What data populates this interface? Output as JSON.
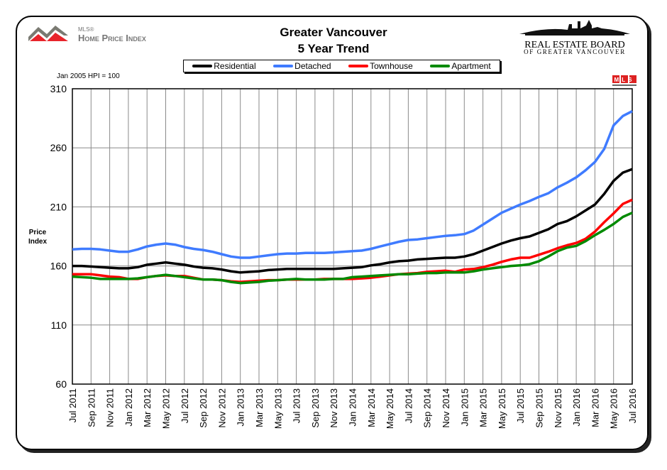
{
  "header": {
    "title_line1": "Greater Vancouver",
    "title_line2": "5 Year Trend",
    "hpi_logo_small": "MLS®",
    "hpi_logo_text": "Home Price Index",
    "board_logo_line1": "REAL ESTATE BOARD",
    "board_logo_line2": "OF GREATER VANCOUVER",
    "mls_badge": "MLS"
  },
  "note": "Jan 2005 HPI = 100",
  "chart_data": {
    "type": "line",
    "title": "Greater Vancouver 5 Year Trend",
    "ylabel": "Price Index",
    "ylim": [
      60,
      310
    ],
    "yticks": [
      60,
      110,
      160,
      210,
      260,
      310
    ],
    "grid": true,
    "legend_placement": "top",
    "x": [
      "Jul 2011",
      "Aug 2011",
      "Sep 2011",
      "Oct 2011",
      "Nov 2011",
      "Dec 2011",
      "Jan 2012",
      "Feb 2012",
      "Mar 2012",
      "Apr 2012",
      "May 2012",
      "Jun 2012",
      "Jul 2012",
      "Aug 2012",
      "Sep 2012",
      "Oct 2012",
      "Nov 2012",
      "Dec 2012",
      "Jan 2013",
      "Feb 2013",
      "Mar 2013",
      "Apr 2013",
      "May 2013",
      "Jun 2013",
      "Jul 2013",
      "Aug 2013",
      "Sep 2013",
      "Oct 2013",
      "Nov 2013",
      "Dec 2013",
      "Jan 2014",
      "Feb 2014",
      "Mar 2014",
      "Apr 2014",
      "May 2014",
      "Jun 2014",
      "Jul 2014",
      "Aug 2014",
      "Sep 2014",
      "Oct 2014",
      "Nov 2014",
      "Dec 2014",
      "Jan 2015",
      "Feb 2015",
      "Mar 2015",
      "Apr 2015",
      "May 2015",
      "Jun 2015",
      "Jul 2015",
      "Aug 2015",
      "Sep 2015",
      "Oct 2015",
      "Nov 2015",
      "Dec 2015",
      "Jan 2016",
      "Feb 2016",
      "Mar 2016",
      "Apr 2016",
      "May 2016",
      "Jun 2016",
      "Jul 2016"
    ],
    "xtick_labels": [
      "Jul 2011",
      "Sep 2011",
      "Nov 2011",
      "Jan 2012",
      "Mar 2012",
      "May 2012",
      "Jul 2012",
      "Sep 2012",
      "Nov 2012",
      "Jan 2013",
      "Mar 2013",
      "May 2013",
      "Jul 2013",
      "Sep 2013",
      "Nov 2013",
      "Jan 2014",
      "Mar 2014",
      "May 2014",
      "Jul 2014",
      "Sep 2014",
      "Nov 2014",
      "Jan 2015",
      "Mar 2015",
      "May 2015",
      "Jul 2015",
      "Sep 2015",
      "Nov 2015",
      "Jan 2016",
      "Mar 2016",
      "May 2016",
      "Jul 2016"
    ],
    "series": [
      {
        "name": "Residential",
        "color": "#000000",
        "values": [
          160,
          160,
          159.5,
          159,
          158.5,
          158,
          158,
          159,
          161,
          162,
          163,
          162,
          161,
          159.5,
          158.5,
          158,
          157,
          155.5,
          154.5,
          155,
          155.5,
          156.5,
          157,
          157.5,
          157.5,
          157.5,
          157.5,
          157.5,
          157.5,
          158,
          158.5,
          159,
          160.5,
          161.5,
          163,
          164,
          164.5,
          165.5,
          166,
          166.5,
          167,
          167,
          168,
          170,
          173,
          176,
          179,
          181.5,
          183.5,
          185,
          188,
          191,
          195.5,
          198,
          202,
          207,
          212,
          221,
          232,
          239,
          242
        ]
      },
      {
        "name": "Detached",
        "color": "#3f7bff",
        "values": [
          174,
          174.5,
          174.5,
          174,
          173,
          172,
          172,
          174,
          176.5,
          178,
          179,
          178,
          176,
          174.5,
          173.5,
          172,
          170,
          168,
          167,
          167,
          168,
          169,
          170,
          170.5,
          170.5,
          171,
          171,
          171,
          171.5,
          172,
          172.5,
          173,
          174.5,
          176.5,
          178.5,
          180.5,
          182,
          182.5,
          183.5,
          184.5,
          185.5,
          186,
          187,
          190,
          195,
          200,
          205,
          208.5,
          212,
          215,
          218.5,
          221.5,
          226.5,
          230.5,
          235,
          241,
          248,
          259,
          279,
          287,
          291
        ]
      },
      {
        "name": "Townhouse",
        "color": "#ff0000",
        "values": [
          153,
          153,
          153,
          152,
          151,
          150.5,
          149,
          149,
          150.5,
          151.5,
          152,
          151.5,
          151.5,
          150,
          148.5,
          148.5,
          148,
          147,
          146.5,
          147,
          147.5,
          148,
          148,
          148.5,
          148.5,
          148.5,
          148.5,
          149,
          149,
          149,
          149,
          149.5,
          150,
          151,
          152,
          153,
          153.5,
          154,
          155,
          155.5,
          156,
          155,
          157,
          157.5,
          159,
          161,
          163.5,
          165.5,
          167,
          167,
          169.5,
          172,
          175,
          177.5,
          179.5,
          183,
          189,
          197,
          204.5,
          212.5,
          216
        ]
      },
      {
        "name": "Apartment",
        "color": "#008a00",
        "values": [
          151,
          150.5,
          150,
          149,
          149,
          149,
          149,
          149.5,
          150.5,
          151.5,
          152.5,
          151.5,
          150.5,
          149.5,
          148.5,
          148.5,
          148,
          146.5,
          145.5,
          146,
          146.5,
          147.5,
          148,
          148.5,
          149,
          148.5,
          148.5,
          148.5,
          149,
          149,
          150.5,
          151,
          151.5,
          152,
          152.5,
          153,
          153,
          153.5,
          154,
          154,
          154.5,
          154.5,
          154.5,
          155.5,
          157,
          158,
          159,
          160,
          160.5,
          161.5,
          164,
          168,
          172.5,
          175.5,
          177,
          181,
          186,
          190.5,
          195.5,
          201.5,
          205
        ]
      }
    ]
  }
}
